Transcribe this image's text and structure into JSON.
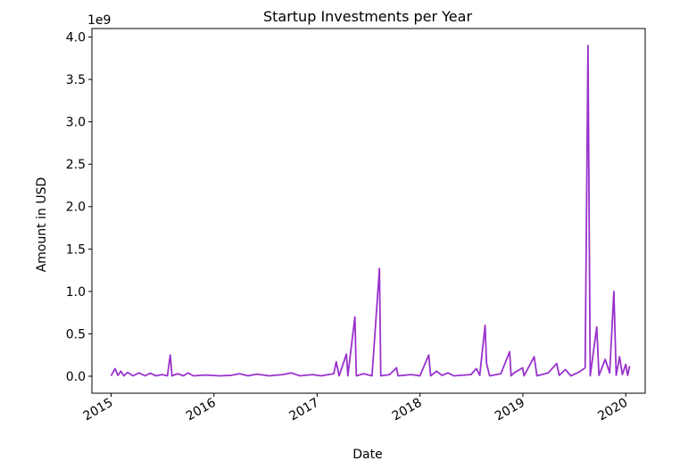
{
  "chart_data": {
    "type": "line",
    "title": "Startup Investments per Year",
    "xlabel": "Date",
    "ylabel": "Amount in USD",
    "y_offset_label": "1e9",
    "y_scale_factor": 1000000000,
    "xlim": [
      "2014-10-25",
      "2020-03-10"
    ],
    "ylim": [
      -200000000,
      4100000000
    ],
    "x_ticks": [
      {
        "date": "2015-01-01",
        "label": "2015"
      },
      {
        "date": "2016-01-01",
        "label": "2016"
      },
      {
        "date": "2017-01-01",
        "label": "2017"
      },
      {
        "date": "2018-01-01",
        "label": "2018"
      },
      {
        "date": "2019-01-01",
        "label": "2019"
      },
      {
        "date": "2020-01-01",
        "label": "2020"
      }
    ],
    "y_ticks": [
      {
        "value": 0,
        "label": "0.0"
      },
      {
        "value": 500000000,
        "label": "0.5"
      },
      {
        "value": 1000000000,
        "label": "1.0"
      },
      {
        "value": 1500000000,
        "label": "1.5"
      },
      {
        "value": 2000000000,
        "label": "2.0"
      },
      {
        "value": 2500000000,
        "label": "2.5"
      },
      {
        "value": 3000000000,
        "label": "3.0"
      },
      {
        "value": 3500000000,
        "label": "3.5"
      },
      {
        "value": 4000000000,
        "label": "4.0"
      }
    ],
    "grid": false,
    "series": [
      {
        "color": "#9932CC",
        "points": [
          [
            "2015-01-01",
            5000000
          ],
          [
            "2015-01-15",
            90000000
          ],
          [
            "2015-01-25",
            10000000
          ],
          [
            "2015-02-05",
            60000000
          ],
          [
            "2015-02-15",
            5000000
          ],
          [
            "2015-03-01",
            45000000
          ],
          [
            "2015-03-20",
            5000000
          ],
          [
            "2015-04-10",
            40000000
          ],
          [
            "2015-05-01",
            5000000
          ],
          [
            "2015-05-20",
            35000000
          ],
          [
            "2015-06-10",
            5000000
          ],
          [
            "2015-07-01",
            20000000
          ],
          [
            "2015-07-20",
            5000000
          ],
          [
            "2015-07-30",
            250000000
          ],
          [
            "2015-08-05",
            5000000
          ],
          [
            "2015-08-25",
            30000000
          ],
          [
            "2015-09-15",
            5000000
          ],
          [
            "2015-10-01",
            40000000
          ],
          [
            "2015-10-20",
            5000000
          ],
          [
            "2015-12-01",
            15000000
          ],
          [
            "2016-01-20",
            5000000
          ],
          [
            "2016-03-01",
            10000000
          ],
          [
            "2016-04-01",
            30000000
          ],
          [
            "2016-05-01",
            5000000
          ],
          [
            "2016-06-01",
            25000000
          ],
          [
            "2016-07-15",
            5000000
          ],
          [
            "2016-09-01",
            20000000
          ],
          [
            "2016-10-01",
            40000000
          ],
          [
            "2016-11-01",
            5000000
          ],
          [
            "2016-12-15",
            20000000
          ],
          [
            "2017-01-15",
            5000000
          ],
          [
            "2017-03-01",
            30000000
          ],
          [
            "2017-03-10",
            170000000
          ],
          [
            "2017-03-20",
            5000000
          ],
          [
            "2017-04-15",
            260000000
          ],
          [
            "2017-04-20",
            5000000
          ],
          [
            "2017-05-15",
            700000000
          ],
          [
            "2017-05-20",
            5000000
          ],
          [
            "2017-06-15",
            30000000
          ],
          [
            "2017-07-15",
            5000000
          ],
          [
            "2017-08-10",
            1270000000
          ],
          [
            "2017-08-15",
            5000000
          ],
          [
            "2017-09-15",
            20000000
          ],
          [
            "2017-10-10",
            100000000
          ],
          [
            "2017-10-15",
            5000000
          ],
          [
            "2017-12-01",
            20000000
          ],
          [
            "2018-01-01",
            5000000
          ],
          [
            "2018-02-01",
            250000000
          ],
          [
            "2018-02-08",
            5000000
          ],
          [
            "2018-03-01",
            60000000
          ],
          [
            "2018-03-20",
            10000000
          ],
          [
            "2018-04-10",
            40000000
          ],
          [
            "2018-05-01",
            5000000
          ],
          [
            "2018-07-01",
            20000000
          ],
          [
            "2018-07-20",
            90000000
          ],
          [
            "2018-08-01",
            10000000
          ],
          [
            "2018-08-20",
            600000000
          ],
          [
            "2018-08-25",
            150000000
          ],
          [
            "2018-09-05",
            5000000
          ],
          [
            "2018-10-15",
            30000000
          ],
          [
            "2018-11-15",
            290000000
          ],
          [
            "2018-11-20",
            5000000
          ],
          [
            "2018-12-01",
            40000000
          ],
          [
            "2018-12-31",
            100000000
          ],
          [
            "2019-01-05",
            5000000
          ],
          [
            "2019-02-10",
            230000000
          ],
          [
            "2019-02-20",
            5000000
          ],
          [
            "2019-04-01",
            40000000
          ],
          [
            "2019-05-01",
            150000000
          ],
          [
            "2019-05-10",
            10000000
          ],
          [
            "2019-06-01",
            80000000
          ],
          [
            "2019-06-20",
            5000000
          ],
          [
            "2019-07-20",
            50000000
          ],
          [
            "2019-08-10",
            100000000
          ],
          [
            "2019-08-20",
            3900000000
          ],
          [
            "2019-08-28",
            5000000
          ],
          [
            "2019-09-20",
            580000000
          ],
          [
            "2019-09-28",
            10000000
          ],
          [
            "2019-10-20",
            200000000
          ],
          [
            "2019-11-05",
            40000000
          ],
          [
            "2019-11-20",
            1000000000
          ],
          [
            "2019-11-28",
            10000000
          ],
          [
            "2019-12-10",
            230000000
          ],
          [
            "2019-12-20",
            20000000
          ],
          [
            "2020-01-01",
            140000000
          ],
          [
            "2020-01-08",
            10000000
          ],
          [
            "2020-01-15",
            120000000
          ]
        ]
      }
    ]
  }
}
